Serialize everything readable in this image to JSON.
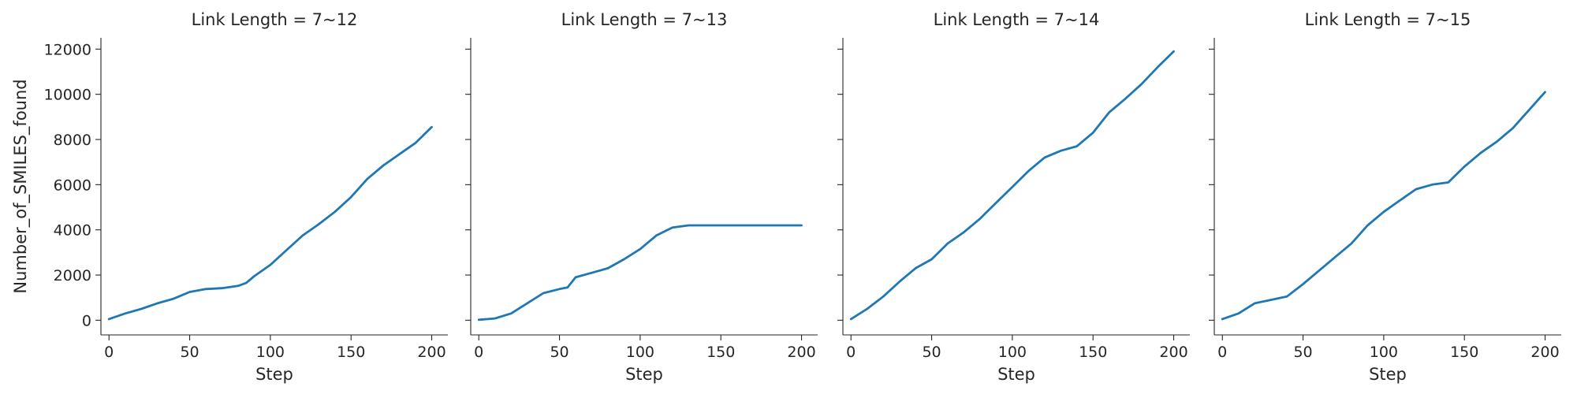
{
  "chart_data": {
    "type": "line",
    "ylabel": "Number_of_SMILES_found",
    "xlabel": "Step",
    "xlim": [
      -5,
      210
    ],
    "ylim": [
      -650,
      12500
    ],
    "xticks": [
      0,
      50,
      100,
      150,
      200
    ],
    "yticks": [
      0,
      2000,
      4000,
      6000,
      8000,
      10000,
      12000
    ],
    "shared_y": true,
    "grid": false,
    "line_color": "#1f77b4",
    "panels": [
      {
        "title": "Link Length = 7~12",
        "x": [
          0,
          10,
          20,
          30,
          40,
          50,
          60,
          70,
          80,
          85,
          90,
          100,
          110,
          120,
          130,
          140,
          150,
          160,
          170,
          180,
          190,
          200
        ],
        "y": [
          50,
          300,
          500,
          750,
          950,
          1250,
          1380,
          1420,
          1520,
          1650,
          1950,
          2450,
          3100,
          3750,
          4250,
          4800,
          5450,
          6250,
          6850,
          7350,
          7850,
          8550
        ]
      },
      {
        "title": "Link Length = 7~13",
        "x": [
          0,
          10,
          20,
          30,
          40,
          50,
          55,
          60,
          70,
          80,
          90,
          100,
          110,
          120,
          130,
          140,
          150,
          160,
          170,
          180,
          190,
          200
        ],
        "y": [
          20,
          80,
          300,
          750,
          1200,
          1380,
          1450,
          1900,
          2100,
          2300,
          2700,
          3150,
          3750,
          4100,
          4200,
          4200,
          4200,
          4200,
          4200,
          4200,
          4200,
          4200
        ]
      },
      {
        "title": "Link Length = 7~14",
        "x": [
          0,
          10,
          20,
          30,
          40,
          50,
          60,
          70,
          80,
          90,
          100,
          110,
          120,
          130,
          140,
          150,
          160,
          170,
          180,
          190,
          200
        ],
        "y": [
          50,
          500,
          1050,
          1700,
          2300,
          2700,
          3400,
          3900,
          4500,
          5200,
          5900,
          6600,
          7200,
          7500,
          7700,
          8300,
          9200,
          9800,
          10450,
          11200,
          11900
        ]
      },
      {
        "title": "Link Length = 7~15",
        "x": [
          0,
          10,
          20,
          30,
          40,
          50,
          60,
          70,
          80,
          90,
          100,
          110,
          120,
          130,
          140,
          150,
          160,
          170,
          180,
          190,
          200
        ],
        "y": [
          50,
          300,
          750,
          900,
          1050,
          1600,
          2200,
          2800,
          3400,
          4200,
          4800,
          5300,
          5800,
          6000,
          6100,
          6800,
          7400,
          7900,
          8500,
          9300,
          10100
        ]
      }
    ]
  }
}
